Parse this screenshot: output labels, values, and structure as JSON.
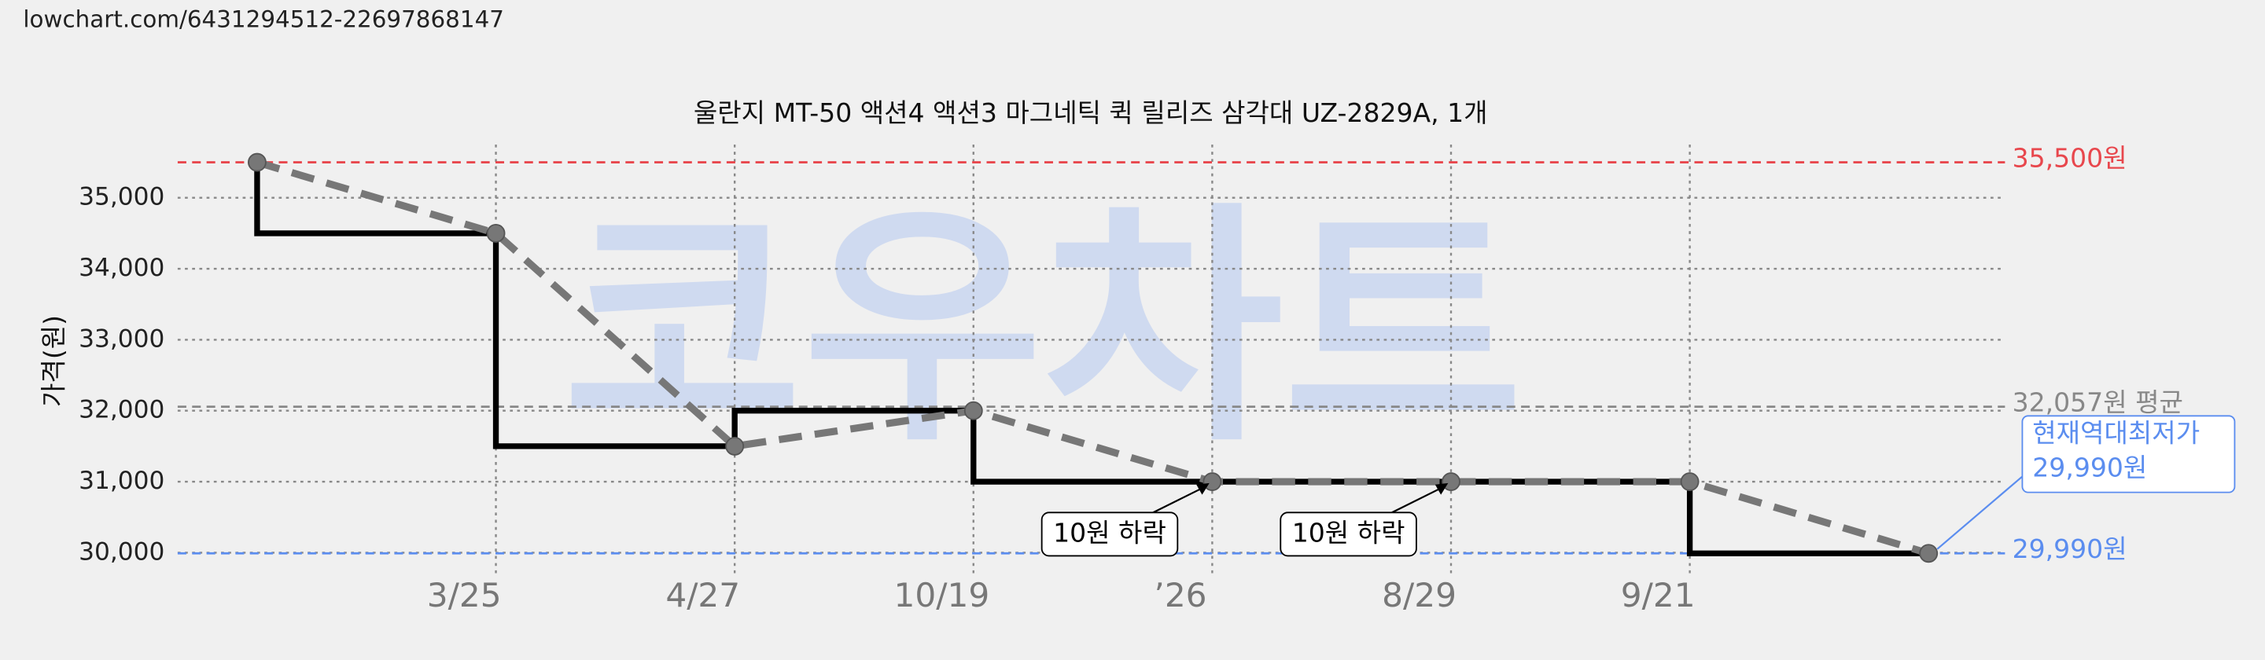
{
  "url": "lowchart.com/6431294512-22697868147",
  "chart_data": {
    "type": "line",
    "title": "울란지 MT-50 액션4 액션3 마그네틱 퀵 릴리즈 삼각대 UZ-2829A, 1개",
    "watermark": "코우차트",
    "ylabel": "가격(원)",
    "categories": [
      null,
      "3/25",
      "4/27",
      "10/19",
      "’26",
      "8/29",
      "9/21",
      null
    ],
    "values": [
      35500,
      34500,
      31500,
      32000,
      31000,
      31000,
      31000,
      29990
    ],
    "color": "#777777",
    "step_color": "#000000",
    "ylim": [
      29650,
      35750
    ],
    "yticks": [
      {
        "value": 30000,
        "label": "30,000"
      },
      {
        "value": 31000,
        "label": "31,000"
      },
      {
        "value": 32000,
        "label": "32,000"
      },
      {
        "value": 33000,
        "label": "33,000"
      },
      {
        "value": 34000,
        "label": "34,000"
      },
      {
        "value": 35000,
        "label": "35,000"
      }
    ],
    "grid": true,
    "reference_lines": [
      {
        "value": 35500,
        "label": "35,500원",
        "color": "#e8474d"
      },
      {
        "value": 32057,
        "label": "32,057원 평균",
        "color": "#888888"
      },
      {
        "value": 29990,
        "label": "29,990원",
        "color": "#5b8def"
      }
    ],
    "annotations": [
      "10원 하락",
      "10원 하락"
    ],
    "callout": [
      "현재역대최저가",
      "29,990원"
    ]
  }
}
